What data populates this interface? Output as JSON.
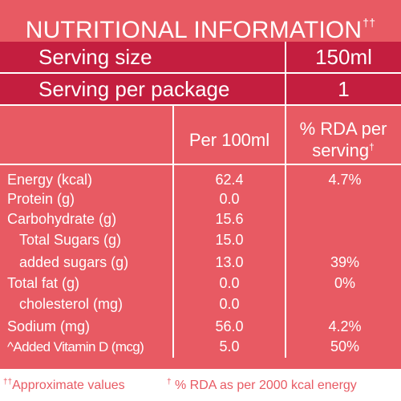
{
  "title": {
    "text": "NUTRITIONAL INFORMATION",
    "mark": "††"
  },
  "serving_size": {
    "label": "Serving size",
    "value": "150ml"
  },
  "serving_per_package": {
    "label": "Serving per package",
    "value": "1"
  },
  "columns": {
    "per_100ml": "Per 100ml",
    "rda_line1": "% RDA per",
    "rda_line2": "serving",
    "rda_mark": "†"
  },
  "rows": [
    {
      "label": "Energy (kcal)",
      "per_100ml": "62.4",
      "rda": "4.7%"
    },
    {
      "label": "Protein (g)",
      "per_100ml": "0.0",
      "rda": ""
    },
    {
      "label": "Carbohydrate (g)",
      "per_100ml": "15.6",
      "rda": ""
    },
    {
      "label": "Total Sugars (g)",
      "per_100ml": "15.0",
      "rda": ""
    },
    {
      "label": "added sugars (g)",
      "per_100ml": "13.0",
      "rda": "39%"
    },
    {
      "label": "Total fat (g)",
      "per_100ml": "0.0",
      "rda": "0%"
    },
    {
      "label": "cholesterol (mg)",
      "per_100ml": "0.0",
      "rda": ""
    },
    {
      "label": "Sodium (mg)",
      "per_100ml": "56.0",
      "rda": "4.2%"
    },
    {
      "label": "^Added Vitamin D (mcg)",
      "per_100ml": "5.0",
      "rda": "50%"
    }
  ],
  "footer": {
    "approx_mark": "††",
    "approx_text": "Approximate values",
    "rda_mark": "†",
    "rda_text": " % RDA as per 2000 kcal energy"
  },
  "colors": {
    "panel": "#e85a63",
    "header_band": "#c41e3f",
    "text": "#ffffff",
    "footer_text": "#e85a63"
  }
}
